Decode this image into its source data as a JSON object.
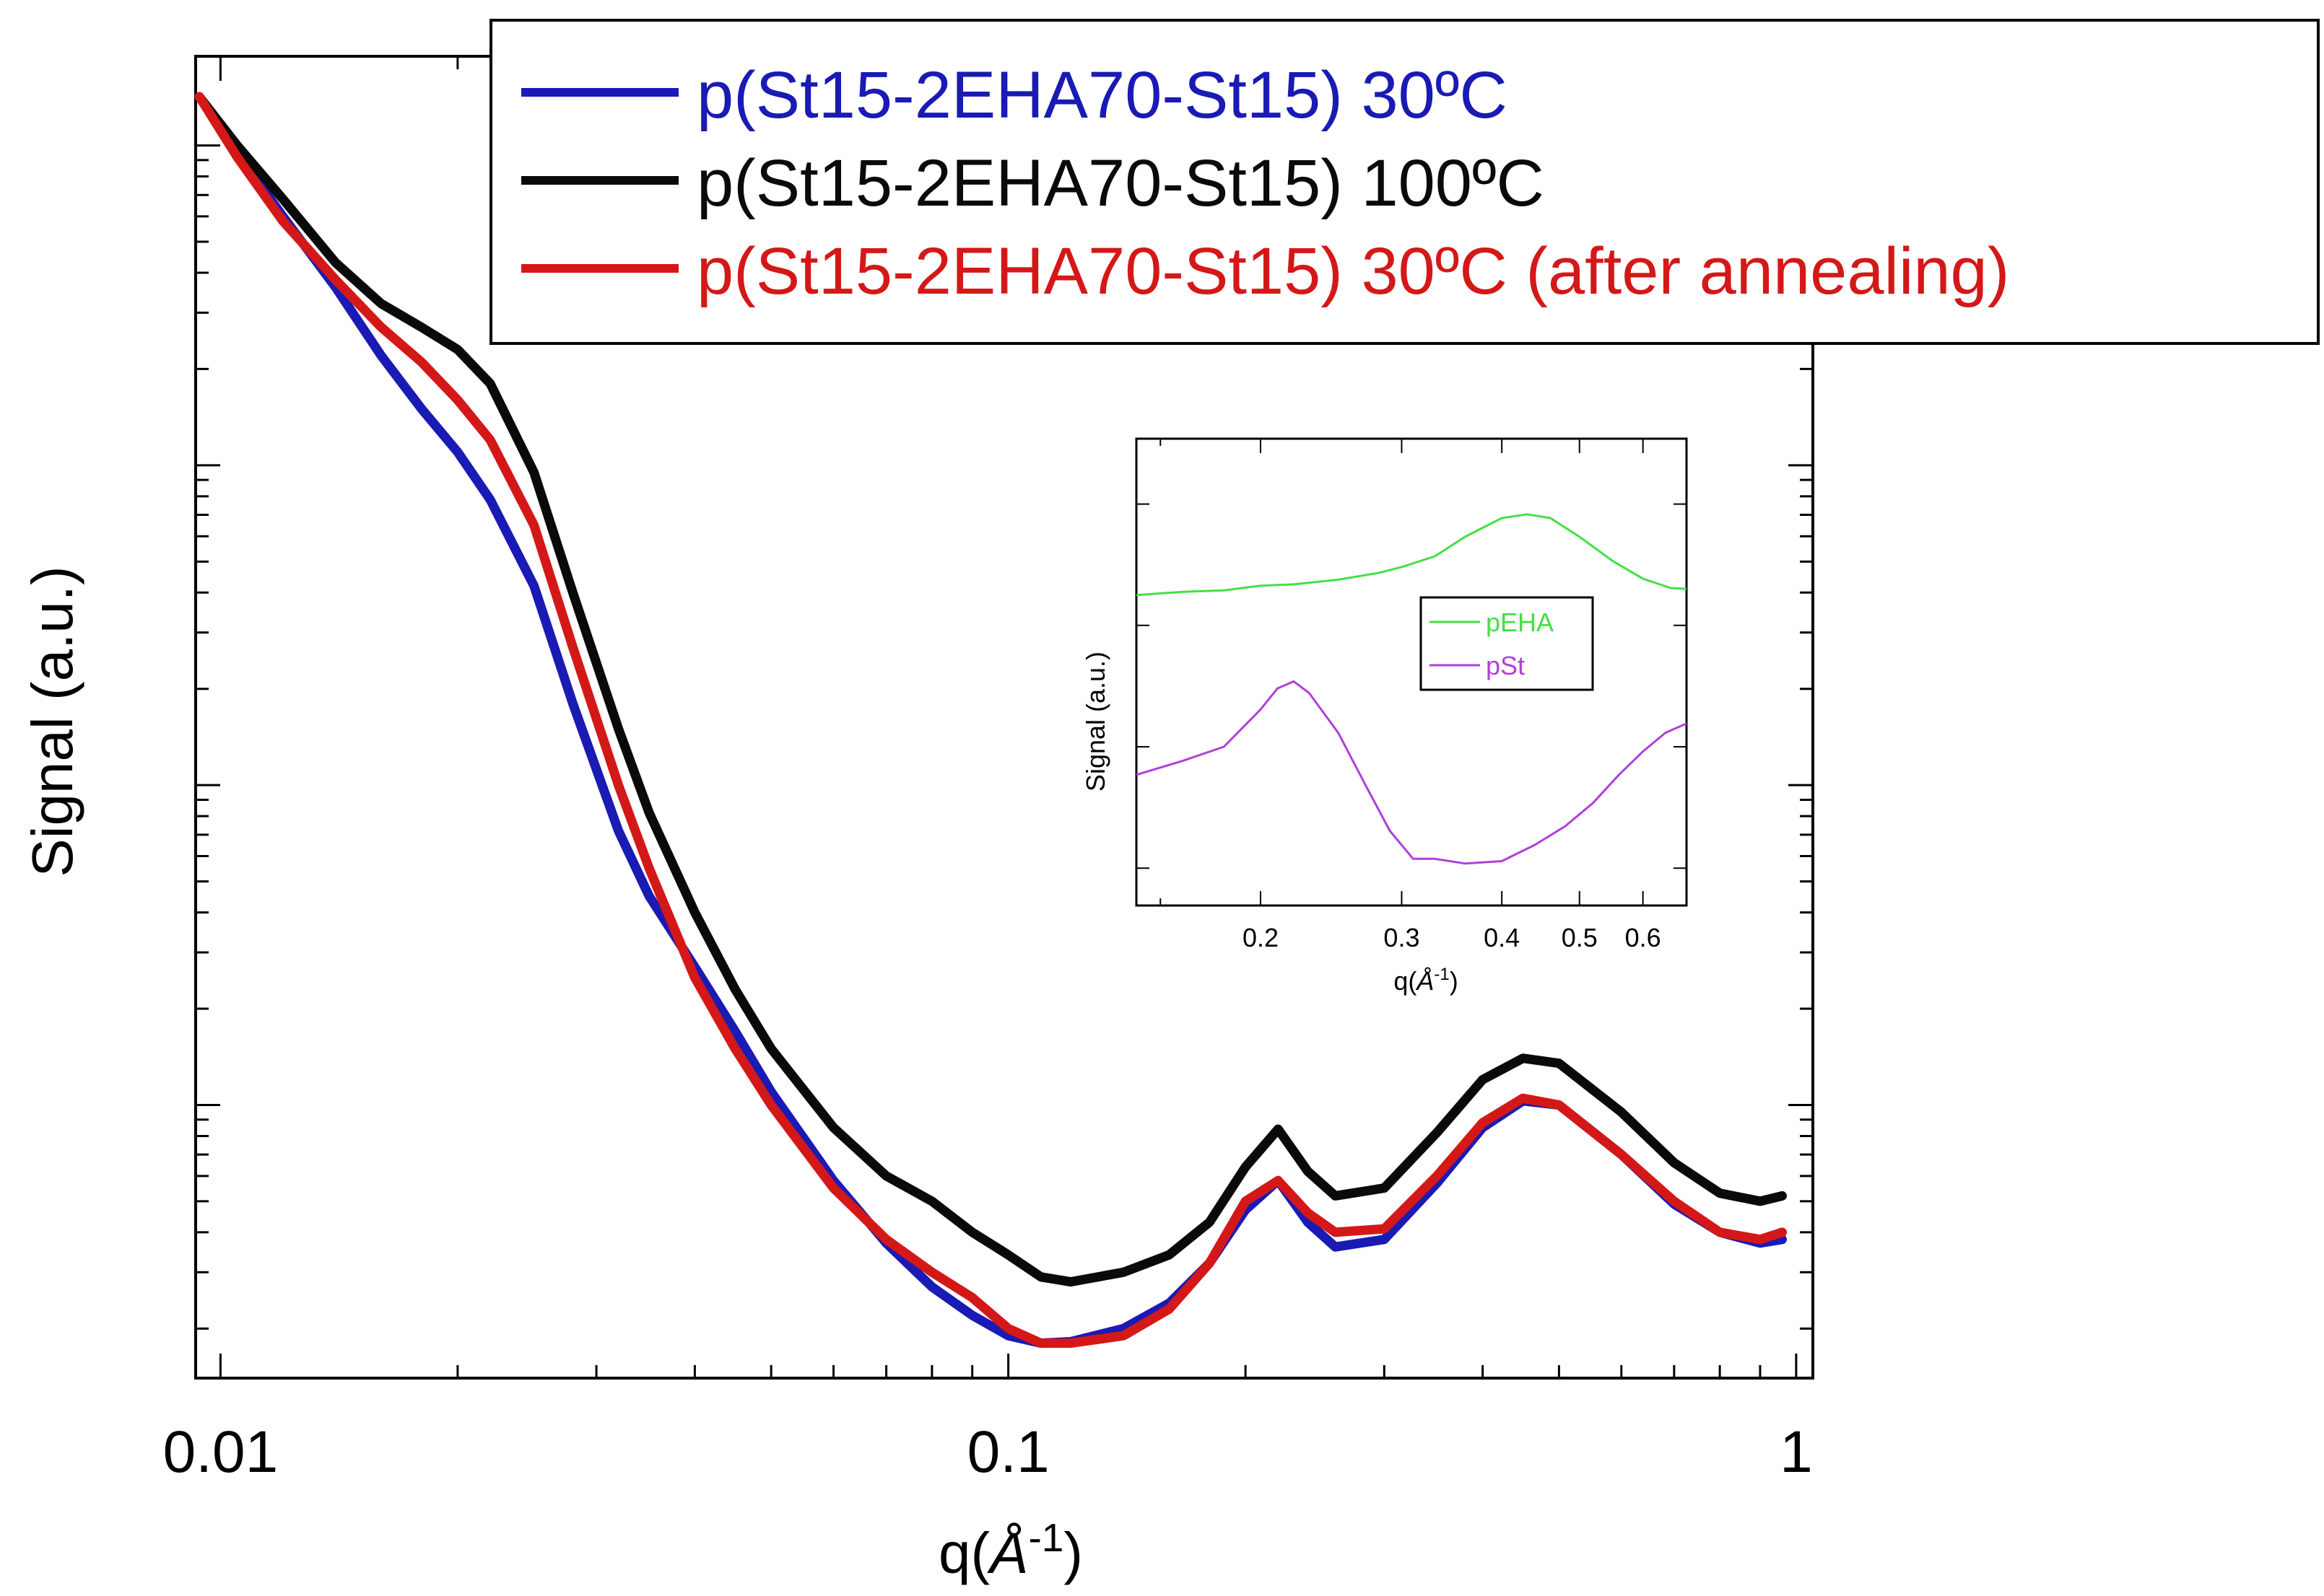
{
  "chart_data": [
    {
      "type": "line",
      "id": "main",
      "xscale": "log",
      "yscale": "log",
      "xlabel": "q(Å-1)",
      "xlabel_base": "q(",
      "xlabel_symbol": "Å",
      "xlabel_exp": "-1",
      "xlabel_close": ")",
      "ylabel": "Signal (a.u.)",
      "xlim": [
        0.0093,
        1.05
      ],
      "ylim": [
        0.014,
        190
      ],
      "xticks": [
        {
          "value": 0.01,
          "label": "0.01"
        },
        {
          "value": 0.1,
          "label": "0.1"
        },
        {
          "value": 1,
          "label": "1"
        }
      ],
      "y_major_ticks": [
        0.1,
        1,
        10
      ],
      "legend_position": "top-right",
      "series": [
        {
          "name": "p(St15-2EHA70-St15) 30ºC",
          "color": "#1a1ab4",
          "x": [
            0.0094,
            0.0105,
            0.012,
            0.014,
            0.016,
            0.018,
            0.02,
            0.022,
            0.025,
            0.028,
            0.032,
            0.035,
            0.04,
            0.045,
            0.05,
            0.06,
            0.07,
            0.08,
            0.09,
            0.1,
            0.11,
            0.12,
            0.14,
            0.16,
            0.18,
            0.2,
            0.22,
            0.24,
            0.26,
            0.3,
            0.35,
            0.4,
            0.45,
            0.5,
            0.6,
            0.7,
            0.8,
            0.9,
            0.96
          ],
          "y": [
            142,
            95,
            60,
            36,
            22,
            15,
            11,
            7.8,
            4.2,
            1.8,
            0.72,
            0.45,
            0.27,
            0.17,
            0.11,
            0.058,
            0.037,
            0.027,
            0.022,
            0.019,
            0.018,
            0.0182,
            0.02,
            0.024,
            0.032,
            0.047,
            0.058,
            0.043,
            0.036,
            0.038,
            0.057,
            0.085,
            0.103,
            0.1,
            0.07,
            0.049,
            0.04,
            0.037,
            0.038
          ]
        },
        {
          "name": "p(St15-2EHA70-St15) 100ºC",
          "color": "#0a0a0a",
          "x": [
            0.0094,
            0.0105,
            0.012,
            0.014,
            0.016,
            0.018,
            0.02,
            0.022,
            0.025,
            0.028,
            0.032,
            0.035,
            0.04,
            0.045,
            0.05,
            0.06,
            0.07,
            0.08,
            0.09,
            0.1,
            0.11,
            0.12,
            0.14,
            0.16,
            0.18,
            0.2,
            0.22,
            0.24,
            0.26,
            0.3,
            0.35,
            0.4,
            0.45,
            0.5,
            0.6,
            0.7,
            0.8,
            0.9,
            0.96
          ],
          "y": [
            142,
            100,
            68,
            43,
            32,
            27,
            23,
            18,
            9.5,
            4.0,
            1.5,
            0.82,
            0.4,
            0.23,
            0.15,
            0.085,
            0.06,
            0.05,
            0.04,
            0.034,
            0.029,
            0.028,
            0.03,
            0.034,
            0.043,
            0.064,
            0.084,
            0.062,
            0.052,
            0.055,
            0.082,
            0.12,
            0.14,
            0.135,
            0.095,
            0.066,
            0.053,
            0.05,
            0.052
          ]
        },
        {
          "name": "p(St15-2EHA70-St15) 30ºC (after annealing)",
          "color": "#d41818",
          "x": [
            0.0094,
            0.0105,
            0.012,
            0.014,
            0.016,
            0.018,
            0.02,
            0.022,
            0.025,
            0.028,
            0.032,
            0.035,
            0.04,
            0.045,
            0.05,
            0.06,
            0.07,
            0.08,
            0.09,
            0.1,
            0.11,
            0.12,
            0.14,
            0.16,
            0.18,
            0.2,
            0.22,
            0.24,
            0.26,
            0.3,
            0.35,
            0.4,
            0.45,
            0.5,
            0.6,
            0.7,
            0.8,
            0.9,
            0.96
          ],
          "y": [
            142,
            92,
            58,
            38,
            27,
            21,
            16,
            12,
            6.5,
            2.7,
            1.0,
            0.55,
            0.25,
            0.15,
            0.1,
            0.055,
            0.038,
            0.03,
            0.025,
            0.02,
            0.018,
            0.018,
            0.019,
            0.023,
            0.032,
            0.05,
            0.058,
            0.046,
            0.04,
            0.041,
            0.06,
            0.088,
            0.105,
            0.1,
            0.07,
            0.05,
            0.04,
            0.038,
            0.04
          ]
        }
      ]
    },
    {
      "type": "line",
      "id": "inset",
      "xscale": "log",
      "xlabel": "q(Å-1)",
      "xlabel_base": "q(",
      "xlabel_symbol": "Å",
      "xlabel_exp": "-1",
      "xlabel_close": ")",
      "ylabel": "Signal (a.u.)",
      "xlim": [
        0.14,
        0.68
      ],
      "ylim": [
        0,
        1
      ],
      "xticks": [
        {
          "value": 0.2,
          "label": "0.2"
        },
        {
          "value": 0.3,
          "label": "0.3"
        },
        {
          "value": 0.4,
          "label": "0.4"
        },
        {
          "value": 0.5,
          "label": "0.5"
        },
        {
          "value": 0.6,
          "label": "0.6"
        }
      ],
      "legend_position": "center-right",
      "series": [
        {
          "name": "pEHA",
          "color": "#44e044",
          "x": [
            0.14,
            0.16,
            0.18,
            0.2,
            0.22,
            0.25,
            0.28,
            0.3,
            0.33,
            0.36,
            0.4,
            0.43,
            0.46,
            0.5,
            0.55,
            0.6,
            0.65,
            0.68
          ],
          "y": [
            0.665,
            0.672,
            0.675,
            0.685,
            0.688,
            0.698,
            0.712,
            0.725,
            0.748,
            0.79,
            0.83,
            0.838,
            0.83,
            0.79,
            0.738,
            0.7,
            0.68,
            0.678
          ]
        },
        {
          "name": "pSt",
          "color": "#b040d8",
          "x": [
            0.14,
            0.16,
            0.18,
            0.2,
            0.21,
            0.22,
            0.23,
            0.25,
            0.27,
            0.29,
            0.31,
            0.33,
            0.36,
            0.4,
            0.44,
            0.48,
            0.52,
            0.56,
            0.6,
            0.64,
            0.68
          ],
          "y": [
            0.28,
            0.31,
            0.34,
            0.42,
            0.465,
            0.48,
            0.455,
            0.37,
            0.26,
            0.16,
            0.1,
            0.1,
            0.09,
            0.095,
            0.13,
            0.17,
            0.22,
            0.28,
            0.33,
            0.37,
            0.39
          ]
        }
      ]
    }
  ]
}
